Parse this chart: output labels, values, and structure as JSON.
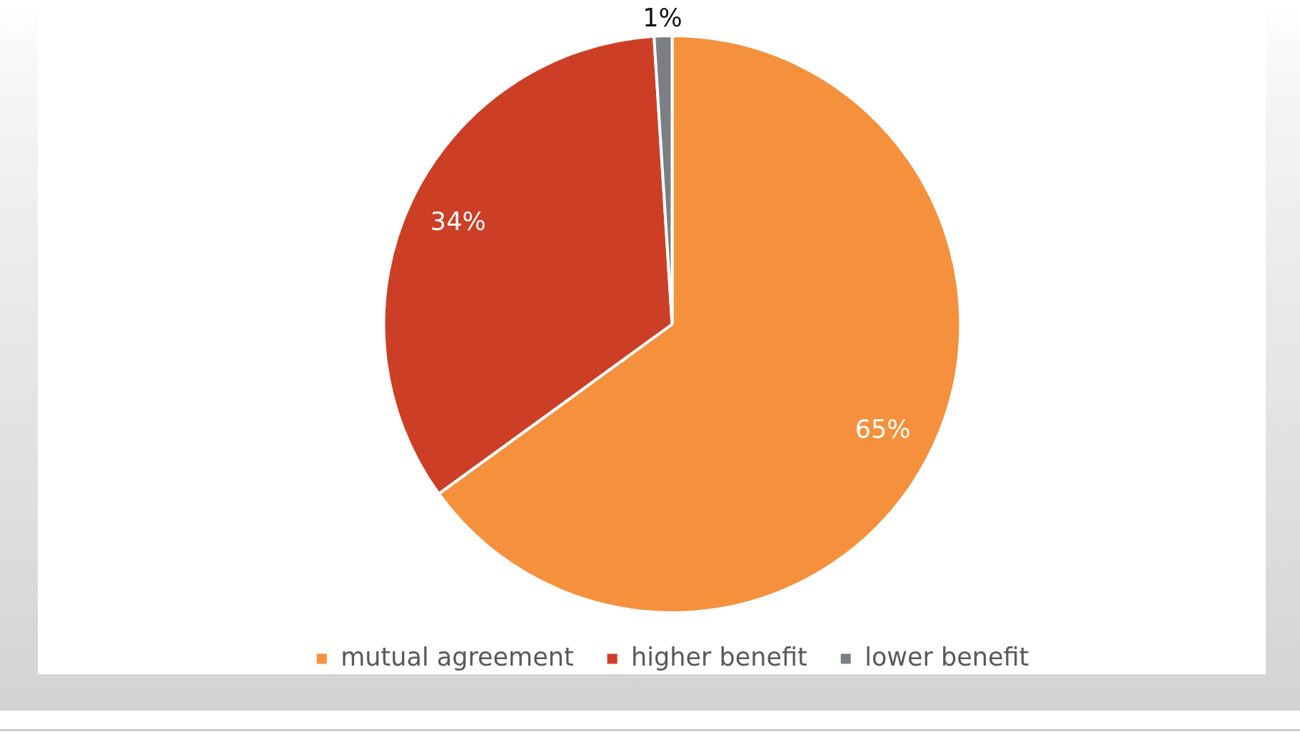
{
  "chart_data": {
    "type": "pie",
    "categories": [
      "mutual agreement",
      "higher benefit",
      "lower benefit"
    ],
    "values": [
      65,
      34,
      1
    ],
    "colors": [
      "#f5903c",
      "#cc3e26",
      "#7b7f84"
    ],
    "value_labels": [
      "65%",
      "34%",
      "1%"
    ],
    "legend": "bottom"
  }
}
